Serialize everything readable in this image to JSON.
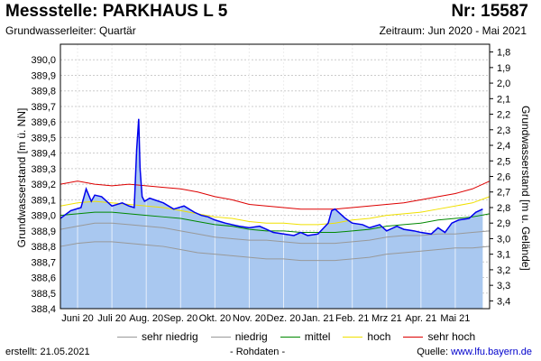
{
  "header": {
    "title": "Messstelle: PARKHAUS L 5",
    "nr": "Nr: 15587",
    "aquifer": "Grundwasserleiter: Quartär",
    "period": "Zeitraum: Jun 2020 - Mai 2021"
  },
  "footer": {
    "created": "erstellt:  21.05.2021",
    "rawdata": "- Rohdaten -",
    "source_label": "Quelle: ",
    "source_link": "www.lfu.bayern.de"
  },
  "colors": {
    "measured": "#0000ee",
    "fill": "#a9c8f0",
    "sehr_niedrig": "#999999",
    "niedrig": "#999999",
    "mittel": "#008800",
    "hoch": "#f0e000",
    "sehr_hoch": "#dd0000"
  },
  "chart_data": {
    "type": "line",
    "ylabel": "Grundwasserstand [m ü. NN]",
    "y2label": "Grundwasserstand [m u. Gelände]",
    "ylim": [
      388.4,
      390.1
    ],
    "y2lim": [
      3.45,
      1.75
    ],
    "xlim": [
      0,
      12.5
    ],
    "yticks": [
      "388,4",
      "388,5",
      "388,6",
      "388,7",
      "388,8",
      "388,9",
      "389,0",
      "389,1",
      "389,2",
      "389,3",
      "389,4",
      "389,5",
      "389,6",
      "389,7",
      "389,8",
      "389,9",
      "390,0"
    ],
    "y2ticks": [
      "3,4",
      "3,3",
      "3,2",
      "3,1",
      "3,0",
      "2,9",
      "2,8",
      "2,7",
      "2,6",
      "2,5",
      "2,4",
      "2,3",
      "2,2",
      "2,1",
      "2,0",
      "1,9",
      "1,8"
    ],
    "xticks": [
      "Juni 20",
      "Juli 20",
      "Aug. 20",
      "Sep. 20",
      "Okt. 20",
      "Nov. 20",
      "Dez. 20",
      "Jan. 21",
      "Feb. 21",
      "Mrz 21",
      "Apr. 21",
      "Mai 21"
    ],
    "legend": [
      {
        "key": "sehr_niedrig",
        "label": "sehr niedrig"
      },
      {
        "key": "niedrig",
        "label": "niedrig"
      },
      {
        "key": "mittel",
        "label": "mittel"
      },
      {
        "key": "hoch",
        "label": "hoch"
      },
      {
        "key": "sehr_hoch",
        "label": "sehr hoch"
      }
    ],
    "series": [
      {
        "key": "sehr_hoch",
        "x": [
          0,
          0.5,
          1,
          1.5,
          2,
          2.5,
          3,
          3.5,
          4,
          4.5,
          5,
          5.5,
          6,
          6.5,
          7,
          7.5,
          8,
          8.5,
          9,
          9.5,
          10,
          10.5,
          11,
          11.5,
          12,
          12.5
        ],
        "y": [
          389.2,
          389.22,
          389.2,
          389.19,
          389.2,
          389.19,
          389.18,
          389.17,
          389.15,
          389.12,
          389.1,
          389.07,
          389.06,
          389.05,
          389.04,
          389.04,
          389.04,
          389.05,
          389.06,
          389.07,
          389.08,
          389.1,
          389.12,
          389.14,
          389.17,
          389.22
        ]
      },
      {
        "key": "hoch",
        "x": [
          0,
          0.5,
          1,
          1.5,
          2,
          2.5,
          3,
          3.5,
          4,
          4.5,
          5,
          5.5,
          6,
          6.5,
          7,
          7.5,
          8,
          8.5,
          9,
          9.5,
          10,
          10.5,
          11,
          11.5,
          12,
          12.5
        ],
        "y": [
          389.06,
          389.08,
          389.09,
          389.08,
          389.07,
          389.06,
          389.05,
          389.03,
          389.01,
          388.99,
          388.98,
          388.96,
          388.95,
          388.95,
          388.94,
          388.94,
          388.95,
          388.97,
          388.98,
          389.0,
          389.01,
          389.02,
          389.04,
          389.06,
          389.08,
          389.12
        ]
      },
      {
        "key": "mittel",
        "x": [
          0,
          0.5,
          1,
          1.5,
          2,
          2.5,
          3,
          3.5,
          4,
          4.5,
          5,
          5.5,
          6,
          6.5,
          7,
          7.5,
          8,
          8.5,
          9,
          9.5,
          10,
          10.5,
          11,
          11.5,
          12,
          12.5
        ],
        "y": [
          389.0,
          389.01,
          389.02,
          389.02,
          389.01,
          389.0,
          388.99,
          388.98,
          388.96,
          388.94,
          388.93,
          388.91,
          388.9,
          388.9,
          388.89,
          388.89,
          388.89,
          388.9,
          388.91,
          388.93,
          388.94,
          388.95,
          388.97,
          388.98,
          388.99,
          389.01
        ]
      },
      {
        "key": "niedrig",
        "x": [
          0,
          0.5,
          1,
          1.5,
          2,
          2.5,
          3,
          3.5,
          4,
          4.5,
          5,
          5.5,
          6,
          6.5,
          7,
          7.5,
          8,
          8.5,
          9,
          9.5,
          10,
          10.5,
          11,
          11.5,
          12,
          12.5
        ],
        "y": [
          388.91,
          388.93,
          388.95,
          388.95,
          388.94,
          388.93,
          388.92,
          388.9,
          388.88,
          388.86,
          388.85,
          388.84,
          388.84,
          388.83,
          388.82,
          388.82,
          388.82,
          388.83,
          388.84,
          388.86,
          388.87,
          388.87,
          388.88,
          388.88,
          388.89,
          388.9
        ]
      },
      {
        "key": "sehr_niedrig",
        "x": [
          0,
          0.5,
          1,
          1.5,
          2,
          2.5,
          3,
          3.5,
          4,
          4.5,
          5,
          5.5,
          6,
          6.5,
          7,
          7.5,
          8,
          8.5,
          9,
          9.5,
          10,
          10.5,
          11,
          11.5,
          12,
          12.5
        ],
        "y": [
          388.8,
          388.82,
          388.83,
          388.83,
          388.82,
          388.81,
          388.8,
          388.78,
          388.76,
          388.75,
          388.74,
          388.73,
          388.72,
          388.72,
          388.71,
          388.71,
          388.71,
          388.72,
          388.73,
          388.75,
          388.76,
          388.77,
          388.78,
          388.79,
          388.79,
          388.8
        ]
      }
    ],
    "measured": {
      "x": [
        0,
        0.3,
        0.6,
        0.75,
        0.9,
        1.0,
        1.2,
        1.5,
        1.8,
        2.0,
        2.15,
        2.22,
        2.28,
        2.32,
        2.38,
        2.45,
        2.6,
        3.0,
        3.3,
        3.6,
        3.9,
        4.1,
        4.3,
        4.5,
        4.8,
        5.0,
        5.2,
        5.5,
        5.8,
        6.0,
        6.2,
        6.5,
        6.8,
        7.0,
        7.2,
        7.5,
        7.8,
        7.9,
        8.0,
        8.1,
        8.3,
        8.5,
        8.8,
        9.0,
        9.3,
        9.5,
        9.8,
        10.0,
        10.3,
        10.5,
        10.8,
        11.0,
        11.2,
        11.4,
        11.6,
        11.9,
        12.1,
        12.3
      ],
      "y": [
        388.98,
        389.03,
        389.05,
        389.17,
        389.09,
        389.13,
        389.12,
        389.06,
        389.08,
        389.06,
        389.05,
        389.42,
        389.62,
        389.3,
        389.12,
        389.09,
        389.11,
        389.08,
        389.04,
        389.06,
        389.02,
        389.0,
        388.99,
        388.97,
        388.95,
        388.94,
        388.93,
        388.92,
        388.93,
        388.91,
        388.89,
        388.88,
        388.87,
        388.89,
        388.87,
        388.88,
        388.95,
        389.03,
        389.04,
        389.02,
        388.98,
        388.95,
        388.94,
        388.92,
        388.94,
        388.9,
        388.93,
        388.91,
        388.9,
        388.89,
        388.88,
        388.92,
        388.89,
        388.95,
        388.97,
        388.98,
        389.02,
        389.04
      ]
    }
  }
}
